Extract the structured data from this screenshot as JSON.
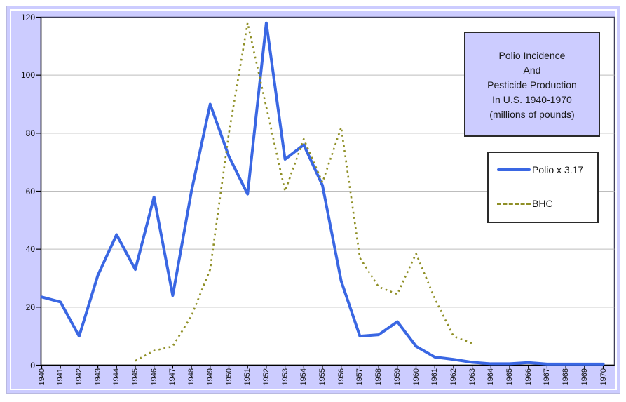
{
  "title_box": {
    "lines": [
      "Polio Incidence",
      "And",
      "Pesticide Production",
      "In U.S. 1940-1970",
      "(millions of pounds)"
    ]
  },
  "legend": {
    "position": "right-inside",
    "items": [
      {
        "label": "Polio x 3.17",
        "style": "solid",
        "color": "#3A67E3"
      },
      {
        "label": "BHC",
        "style": "dashed",
        "color": "#8F8F26"
      }
    ]
  },
  "chart_data": {
    "type": "line",
    "title": "Polio Incidence And Pesticide Production In U.S. 1940-1970 (millions of pounds)",
    "x": [
      1940,
      1941,
      1942,
      1943,
      1944,
      1945,
      1946,
      1947,
      1948,
      1949,
      1950,
      1951,
      1952,
      1953,
      1954,
      1955,
      1956,
      1957,
      1958,
      1959,
      1960,
      1961,
      1962,
      1963,
      1964,
      1965,
      1966,
      1967,
      1968,
      1969,
      1970
    ],
    "series": [
      {
        "name": "Polio x 3.17",
        "color": "#3A67E3",
        "dash": false,
        "values": [
          23.5,
          21.8,
          10,
          31,
          45,
          33,
          58,
          24,
          60,
          90,
          72,
          59,
          118,
          71,
          76,
          62,
          29,
          10,
          10.5,
          15,
          6.5,
          2.8,
          2,
          1,
          0.5,
          0.5,
          0.9,
          0.4,
          0.4,
          0.4,
          0.4
        ]
      },
      {
        "name": "BHC",
        "color": "#8F8F26",
        "dash": true,
        "values": [
          null,
          null,
          null,
          null,
          null,
          1.5,
          5,
          6.5,
          17,
          33,
          80,
          118,
          89,
          60,
          78,
          63,
          82,
          37,
          27,
          24.5,
          38.5,
          23,
          10,
          7.5,
          null,
          null,
          null,
          null,
          null,
          null,
          null
        ]
      }
    ],
    "xlabel": "",
    "ylabel": "",
    "ylim": [
      0,
      120
    ],
    "yticks": [
      0,
      20,
      40,
      60,
      80,
      100,
      120
    ],
    "grid": true,
    "gridlines_at": [
      20,
      40,
      60,
      80,
      100
    ],
    "legend_position": "right-inside"
  },
  "colors": {
    "chart_background": "#CCCCFF",
    "plot_background": "#FFFFFF",
    "gridline": "#BDBDBD",
    "axis": "#000000",
    "plot_border": "#3F3F58",
    "frame_border": "#B9B9E0",
    "text": "#111111",
    "polio_line": "#3A67E3",
    "bhc_line": "#8F8F26"
  }
}
